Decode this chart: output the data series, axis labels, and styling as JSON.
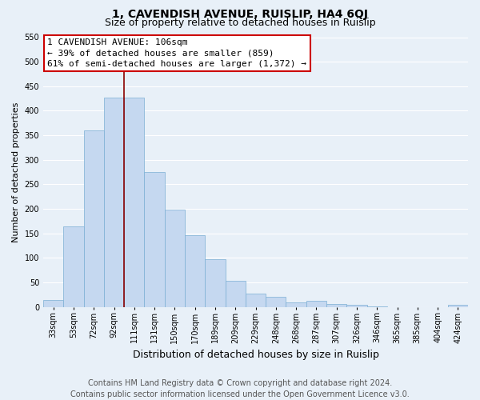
{
  "title": "1, CAVENDISH AVENUE, RUISLIP, HA4 6QJ",
  "subtitle": "Size of property relative to detached houses in Ruislip",
  "xlabel": "Distribution of detached houses by size in Ruislip",
  "ylabel": "Number of detached properties",
  "bar_labels": [
    "33sqm",
    "53sqm",
    "72sqm",
    "92sqm",
    "111sqm",
    "131sqm",
    "150sqm",
    "170sqm",
    "189sqm",
    "209sqm",
    "229sqm",
    "248sqm",
    "268sqm",
    "287sqm",
    "307sqm",
    "326sqm",
    "346sqm",
    "365sqm",
    "385sqm",
    "404sqm",
    "424sqm"
  ],
  "bar_heights": [
    15,
    165,
    360,
    427,
    427,
    275,
    198,
    147,
    97,
    54,
    28,
    21,
    10,
    13,
    6,
    4,
    2,
    0,
    0,
    0,
    5
  ],
  "bar_color": "#c5d8f0",
  "bar_edge_color": "#7bafd4",
  "ylim": [
    0,
    550
  ],
  "yticks": [
    0,
    50,
    100,
    150,
    200,
    250,
    300,
    350,
    400,
    450,
    500,
    550
  ],
  "marker_line_color": "#8b0000",
  "annotation_line1": "1 CAVENDISH AVENUE: 106sqm",
  "annotation_line2": "← 39% of detached houses are smaller (859)",
  "annotation_line3": "61% of semi-detached houses are larger (1,372) →",
  "annotation_box_edge_color": "#cc0000",
  "footer_line1": "Contains HM Land Registry data © Crown copyright and database right 2024.",
  "footer_line2": "Contains public sector information licensed under the Open Government Licence v3.0.",
  "background_color": "#e8f0f8",
  "plot_background_color": "#e8f0f8",
  "grid_color": "#ffffff",
  "title_fontsize": 10,
  "subtitle_fontsize": 9,
  "xlabel_fontsize": 9,
  "ylabel_fontsize": 8,
  "tick_fontsize": 7,
  "annotation_fontsize": 8,
  "footer_fontsize": 7
}
